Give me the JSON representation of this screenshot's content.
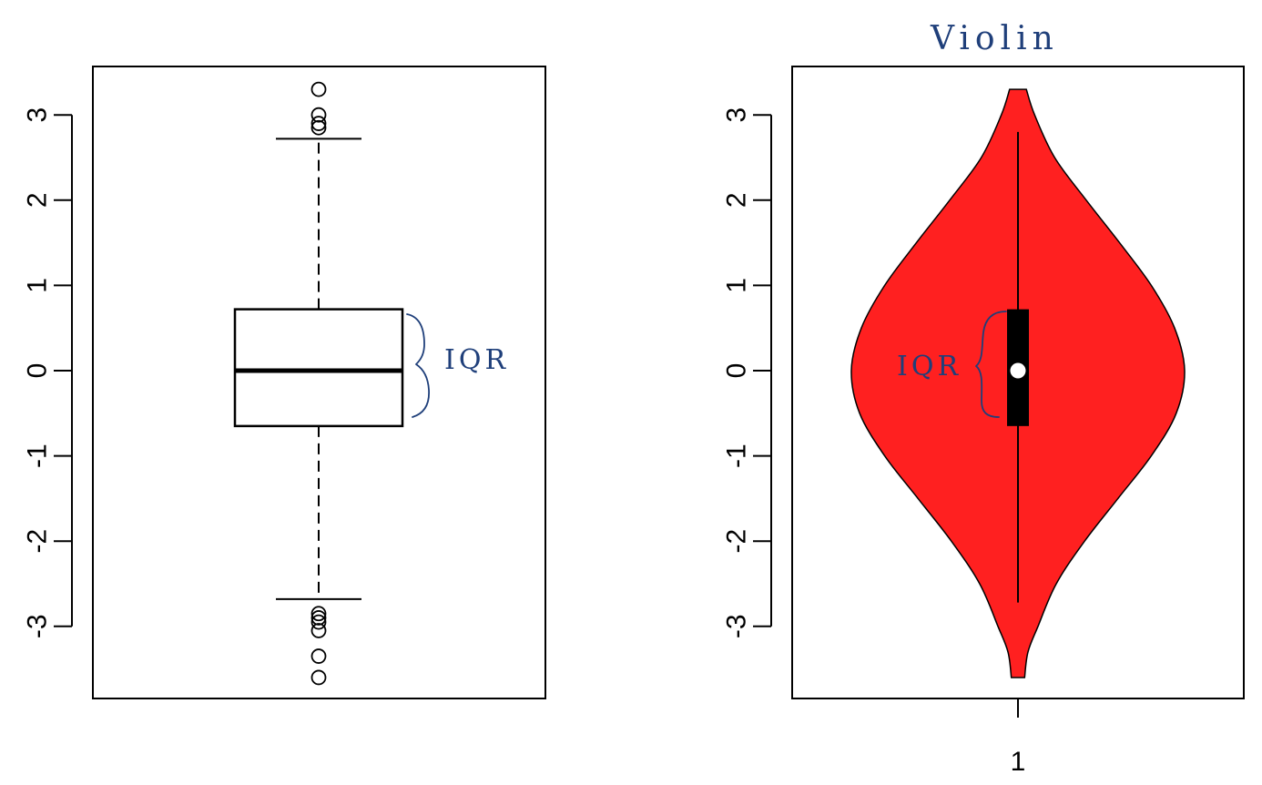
{
  "chart_data": [
    {
      "type": "box",
      "title": "",
      "xlabel": "",
      "ylabel": "",
      "ylim": [
        -3.85,
        3.55
      ],
      "yticks": [
        3,
        2,
        1,
        0,
        -1,
        -2,
        -3
      ],
      "ytick_labels": [
        "3",
        "2",
        "1",
        "0",
        "-1",
        "-2",
        "-3"
      ],
      "stats": {
        "q1": -0.65,
        "median": 0.0,
        "q3": 0.72,
        "whisker_low": -2.68,
        "whisker_high": 2.72
      },
      "outliers_high": [
        3.3,
        3.0,
        2.9,
        2.85
      ],
      "outliers_low": [
        -2.85,
        -2.9,
        -2.95,
        -3.05,
        -3.35,
        -3.6
      ],
      "annotation": "IQR",
      "colors": {
        "box_fill": "#ffffff",
        "stroke": "#000000"
      }
    },
    {
      "type": "violin",
      "title": "Violin",
      "xlabel": "",
      "ylabel": "",
      "ylim": [
        -3.85,
        3.55
      ],
      "yticks": [
        3,
        2,
        1,
        0,
        -1,
        -2,
        -3
      ],
      "ytick_labels": [
        "3",
        "2",
        "1",
        "0",
        "-1",
        "-2",
        "-3"
      ],
      "x_tick_labels": [
        "1"
      ],
      "stats": {
        "q1": -0.65,
        "median": 0.0,
        "q3": 0.72,
        "whisker_low": -2.72,
        "whisker_high": 2.8,
        "min": -3.6,
        "max": 3.3
      },
      "density_profile": {
        "y": [
          3.3,
          3.0,
          2.5,
          2.0,
          1.5,
          1.0,
          0.5,
          0.0,
          -0.5,
          -1.0,
          -1.5,
          -2.0,
          -2.5,
          -3.0,
          -3.3,
          -3.6
        ],
        "relative_width": [
          0.05,
          0.1,
          0.22,
          0.41,
          0.61,
          0.8,
          0.94,
          1.0,
          0.95,
          0.8,
          0.6,
          0.4,
          0.23,
          0.12,
          0.06,
          0.04
        ]
      },
      "annotation": "IQR",
      "colors": {
        "violin_fill": "#ff2020",
        "stroke": "#000000",
        "box_fill": "#000000",
        "median_dot": "#ffffff"
      }
    }
  ]
}
